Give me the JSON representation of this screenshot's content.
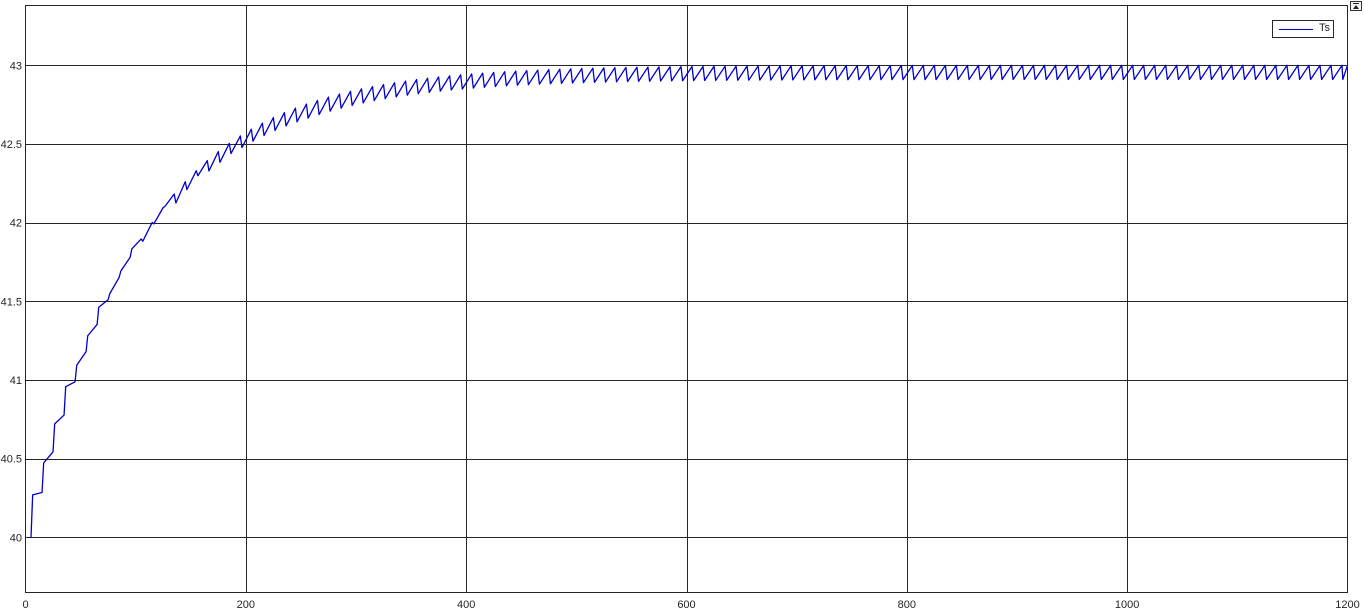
{
  "corner_button_icon": "expand-icon",
  "chart_data": {
    "type": "line",
    "title": "",
    "xlabel": "",
    "ylabel": "",
    "xlim": [
      0,
      1200
    ],
    "ylim": [
      39.65,
      43.38
    ],
    "xticks": [
      0,
      200,
      400,
      600,
      800,
      1000,
      1200
    ],
    "yticks": [
      40,
      40.5,
      41,
      41.5,
      42,
      42.5,
      43
    ],
    "xtick_labels": [
      "0",
      "200",
      "400",
      "600",
      "800",
      "1000",
      "1200"
    ],
    "ytick_labels": [
      "40",
      "40.5",
      "41",
      "41.5",
      "42",
      "42.5",
      "43"
    ],
    "grid": true,
    "legend_position": "top-right",
    "colors": {
      "series": "#0000cc",
      "grid": "#262626",
      "background": "#ffffff"
    },
    "series": [
      {
        "name": "Ts",
        "model": "sawtooth-approach",
        "start_value": 40.0,
        "steady_ceiling": 43.0,
        "steady_floor": 42.82,
        "time_constant": 100,
        "period": 10,
        "x_start": 5,
        "x_end": 1200
      }
    ]
  }
}
